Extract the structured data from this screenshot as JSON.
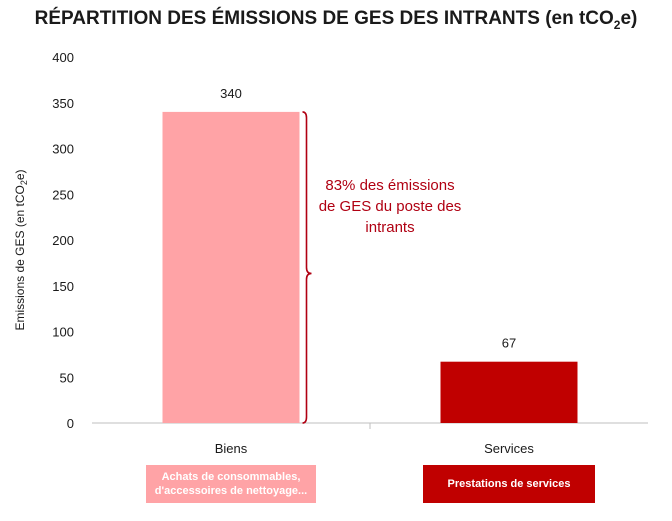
{
  "chart_data": {
    "type": "bar",
    "title": "RÉPARTITION DES ÉMISSIONS DE GES DES INTRANTS (en tCO",
    "title_subscript": "2",
    "title_suffix": "e)",
    "ylabel": "Emissions de GES (en tCO",
    "ylabel_subscript": "2",
    "ylabel_suffix": "e)",
    "xlabel": "",
    "ylim": [
      0,
      400
    ],
    "yticks": [
      0,
      50,
      100,
      150,
      200,
      250,
      300,
      350,
      400
    ],
    "categories": [
      "Biens",
      "Services"
    ],
    "values": [
      340,
      67
    ],
    "value_labels": [
      "340",
      "67"
    ],
    "bar_colors": [
      "#ffa3a6",
      "#c00000"
    ],
    "grid": false,
    "annotation": {
      "lines": [
        "83% des émissions",
        "de GES du poste des",
        "intrants"
      ],
      "color": "#b00012",
      "target_category": "Biens"
    },
    "captions": [
      {
        "lines": [
          "Achats de consommables,",
          "d'accessoires de nettoyage..."
        ],
        "color": "#ffa3a6"
      },
      {
        "lines": [
          "Prestations de services"
        ],
        "color": "#c00000"
      }
    ]
  }
}
